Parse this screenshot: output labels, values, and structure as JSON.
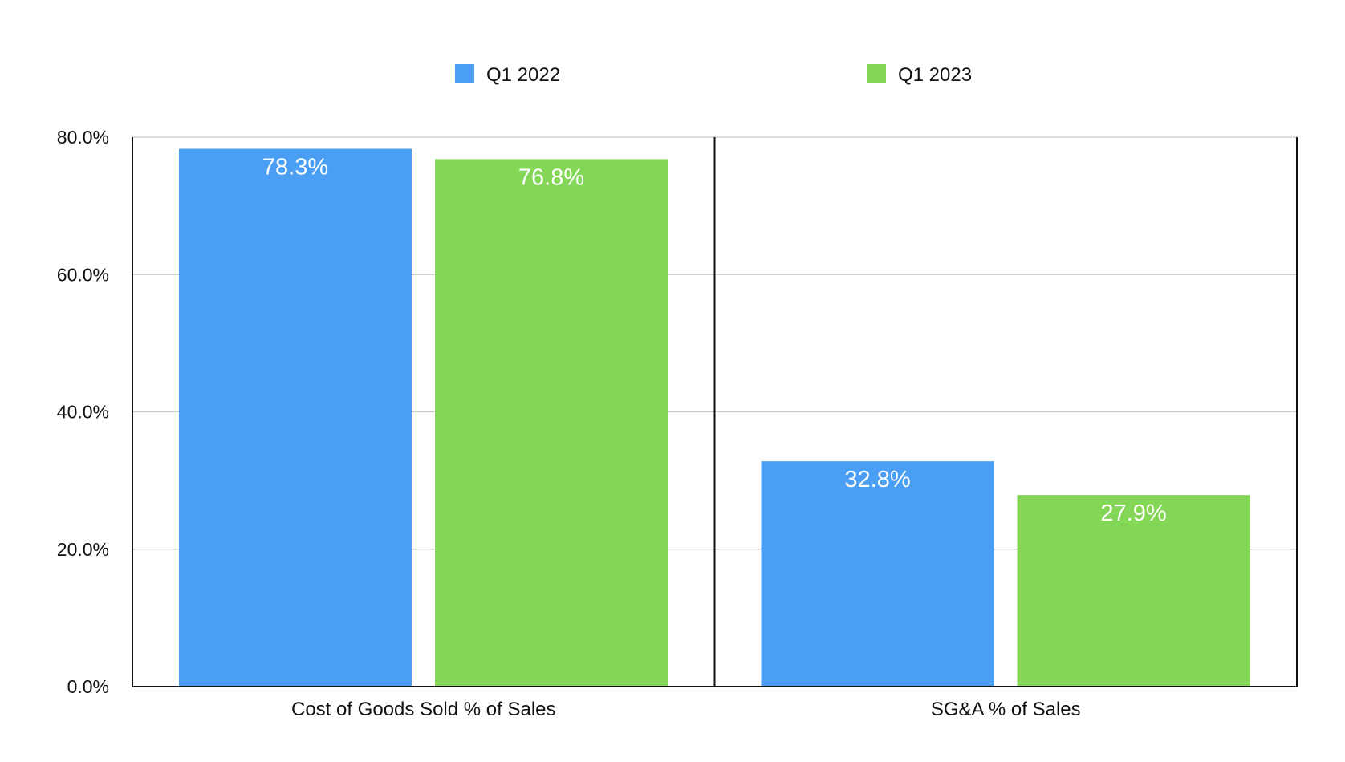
{
  "chart_data": {
    "type": "bar",
    "title": "",
    "xlabel": "",
    "ylabel": "",
    "ylim": [
      0,
      80
    ],
    "yticks": [
      0,
      20,
      40,
      60,
      80
    ],
    "ytick_labels": [
      "0.0%",
      "20.0%",
      "40.0%",
      "60.0%",
      "80.0%"
    ],
    "grid": true,
    "legend_position": "top-center",
    "categories": [
      "Cost of Goods Sold % of Sales",
      "SG&A % of Sales"
    ],
    "series": [
      {
        "name": "Q1 2022",
        "color": "#4A9FF5",
        "values": [
          78.3,
          32.8
        ],
        "labels": [
          "78.3%",
          "32.8%"
        ]
      },
      {
        "name": "Q1 2023",
        "color": "#84D656",
        "values": [
          76.8,
          27.9
        ],
        "labels": [
          "76.8%",
          "27.9%"
        ]
      }
    ]
  }
}
